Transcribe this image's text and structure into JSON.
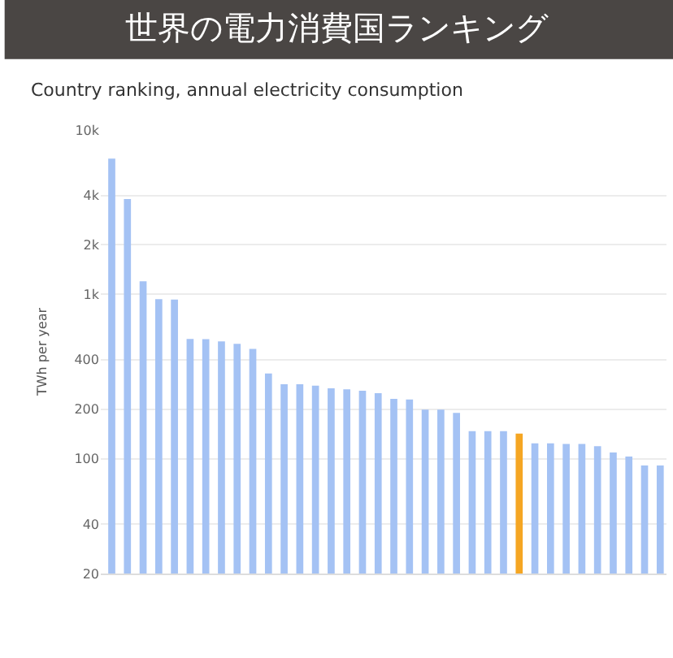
{
  "chart_data": {
    "type": "bar",
    "title": "世界の電力消費国ランキング",
    "subtitle": "Country ranking, annual electricity consumption",
    "ylabel": "TWh per year",
    "categories": [
      null,
      null,
      null,
      null,
      null,
      null,
      null,
      null,
      null,
      null,
      null,
      null,
      null,
      null,
      null,
      null,
      null,
      null,
      null,
      null,
      null,
      null,
      null,
      null,
      null,
      null,
      null,
      null,
      null,
      null,
      null,
      null,
      null,
      null,
      null,
      null
    ],
    "values": [
      6700,
      3800,
      1200,
      935,
      930,
      535,
      533,
      517,
      500,
      466,
      330,
      284,
      284,
      278,
      268,
      264,
      259,
      250,
      231,
      229,
      199,
      199,
      190,
      147,
      147,
      147,
      142,
      124,
      124,
      123,
      123,
      119,
      109,
      103,
      91,
      91
    ],
    "colors": [
      "#a4c2f4",
      "#a4c2f4",
      "#a4c2f4",
      "#a4c2f4",
      "#a4c2f4",
      "#a4c2f4",
      "#a4c2f4",
      "#a4c2f4",
      "#a4c2f4",
      "#a4c2f4",
      "#a4c2f4",
      "#a4c2f4",
      "#a4c2f4",
      "#a4c2f4",
      "#a4c2f4",
      "#a4c2f4",
      "#a4c2f4",
      "#a4c2f4",
      "#a4c2f4",
      "#a4c2f4",
      "#a4c2f4",
      "#a4c2f4",
      "#a4c2f4",
      "#a4c2f4",
      "#a4c2f4",
      "#a4c2f4",
      "#f5a623",
      "#a4c2f4",
      "#a4c2f4",
      "#a4c2f4",
      "#a4c2f4",
      "#a4c2f4",
      "#a4c2f4",
      "#a4c2f4",
      "#a4c2f4",
      "#a4c2f4"
    ],
    "log": true,
    "ylim": [
      20,
      10000
    ],
    "yticks": [
      20,
      40,
      100,
      200,
      400,
      {
        "value": 1000,
        "label": "1k"
      },
      {
        "value": 2000,
        "label": "2k"
      },
      {
        "value": 4000,
        "label": "4k"
      },
      {
        "value": 10000,
        "label": "10k"
      }
    ],
    "grid": "y"
  }
}
